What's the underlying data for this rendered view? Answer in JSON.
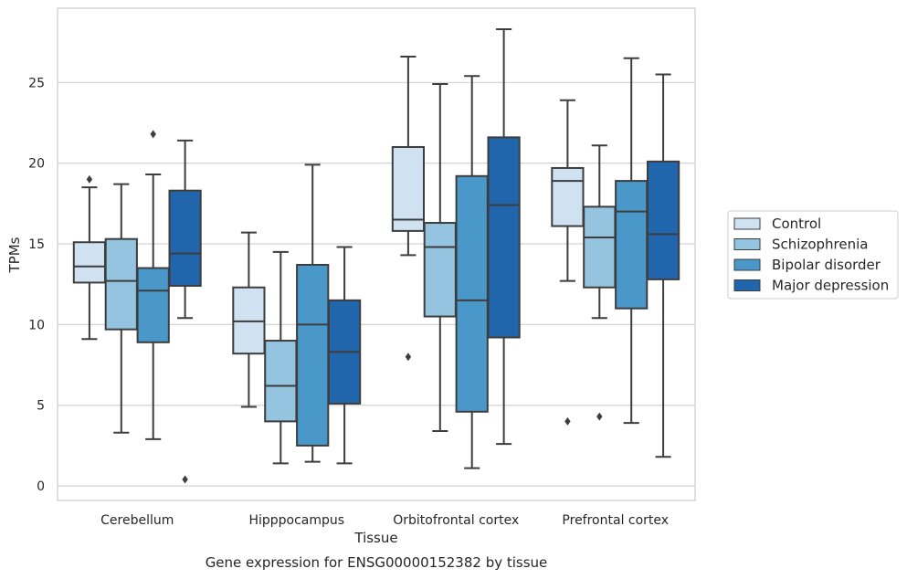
{
  "chart_data": {
    "type": "box",
    "title": "",
    "caption": "Gene expression for ENSG00000152382 by tissue",
    "xlabel": "Tissue",
    "ylabel": "TPMs",
    "ylim": [
      -0.9,
      29.6
    ],
    "yticks": [
      0,
      5,
      10,
      15,
      20,
      25
    ],
    "grid": "horizontal",
    "legend_position": "right",
    "categories": [
      "Cerebellum",
      "Hipppocampus",
      "Orbitofrontal cortex",
      "Prefrontal cortex"
    ],
    "series": [
      {
        "name": "Control",
        "color": "#d0e1f2",
        "boxes": [
          {
            "whisker_low": 9.1,
            "q1": 12.6,
            "median": 13.6,
            "q3": 15.1,
            "whisker_high": 18.5,
            "outliers": [
              19.0
            ]
          },
          {
            "whisker_low": 4.9,
            "q1": 8.2,
            "median": 10.2,
            "q3": 12.3,
            "whisker_high": 15.7,
            "outliers": []
          },
          {
            "whisker_low": 14.3,
            "q1": 15.8,
            "median": 16.5,
            "q3": 21.0,
            "whisker_high": 26.6,
            "outliers": [
              8.0
            ]
          },
          {
            "whisker_low": 12.7,
            "q1": 16.1,
            "median": 18.9,
            "q3": 19.7,
            "whisker_high": 23.9,
            "outliers": [
              4.0
            ]
          }
        ]
      },
      {
        "name": "Schizophrenia",
        "color": "#94c4df",
        "boxes": [
          {
            "whisker_low": 3.3,
            "q1": 9.7,
            "median": 12.7,
            "q3": 15.3,
            "whisker_high": 18.7,
            "outliers": []
          },
          {
            "whisker_low": 1.4,
            "q1": 4.0,
            "median": 6.2,
            "q3": 9.0,
            "whisker_high": 14.5,
            "outliers": []
          },
          {
            "whisker_low": 3.4,
            "q1": 10.5,
            "median": 14.8,
            "q3": 16.3,
            "whisker_high": 24.9,
            "outliers": []
          },
          {
            "whisker_low": 10.4,
            "q1": 12.3,
            "median": 15.4,
            "q3": 17.3,
            "whisker_high": 21.1,
            "outliers": [
              4.3
            ]
          }
        ]
      },
      {
        "name": "Bipolar disorder",
        "color": "#4a98c9",
        "boxes": [
          {
            "whisker_low": 2.9,
            "q1": 8.9,
            "median": 12.1,
            "q3": 13.5,
            "whisker_high": 19.3,
            "outliers": [
              21.8
            ]
          },
          {
            "whisker_low": 1.5,
            "q1": 2.5,
            "median": 10.0,
            "q3": 13.7,
            "whisker_high": 19.9,
            "outliers": []
          },
          {
            "whisker_low": 1.1,
            "q1": 4.6,
            "median": 11.5,
            "q3": 19.2,
            "whisker_high": 25.4,
            "outliers": []
          },
          {
            "whisker_low": 3.9,
            "q1": 11.0,
            "median": 17.0,
            "q3": 18.9,
            "whisker_high": 26.5,
            "outliers": []
          }
        ]
      },
      {
        "name": "Major depression",
        "color": "#2166ac",
        "boxes": [
          {
            "whisker_low": 10.4,
            "q1": 12.4,
            "median": 14.4,
            "q3": 18.3,
            "whisker_high": 21.4,
            "outliers": [
              0.4
            ]
          },
          {
            "whisker_low": 1.4,
            "q1": 5.1,
            "median": 8.3,
            "q3": 11.5,
            "whisker_high": 14.8,
            "outliers": []
          },
          {
            "whisker_low": 2.6,
            "q1": 9.2,
            "median": 17.4,
            "q3": 21.6,
            "whisker_high": 28.3,
            "outliers": []
          },
          {
            "whisker_low": 1.8,
            "q1": 12.8,
            "median": 15.6,
            "q3": 20.1,
            "whisker_high": 25.5,
            "outliers": []
          }
        ]
      }
    ]
  }
}
